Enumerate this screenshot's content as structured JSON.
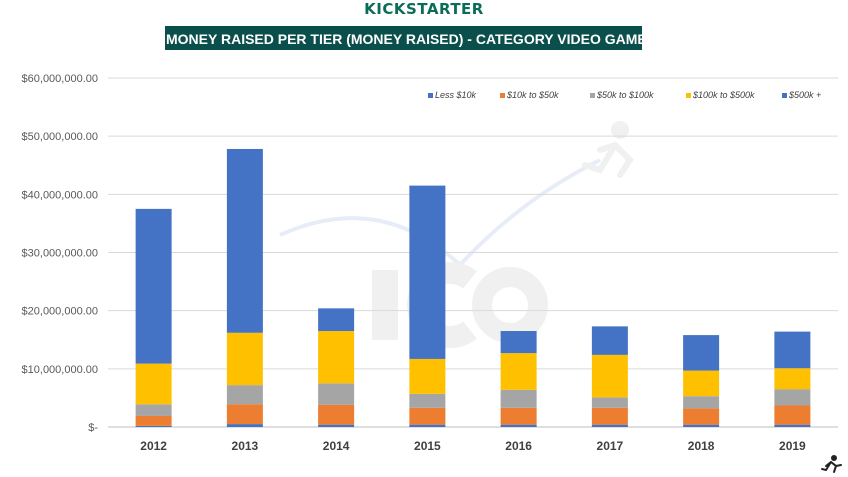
{
  "header": {
    "brand": "KICKSTARTER",
    "title": "MONEY RAISED PER TIER (MONEY RAISED) - CATEGORY VIDEO GAMES"
  },
  "colors": {
    "brand": "#0a6d57",
    "title_bg": "#0b4f4c",
    "series": [
      "#4472c4",
      "#ed7d31",
      "#a5a5a5",
      "#ffc000",
      "#4472c4"
    ]
  },
  "chart_data": {
    "type": "bar",
    "stacked": true,
    "title": "MONEY RAISED PER TIER (MONEY RAISED) - CATEGORY VIDEO GAMES",
    "xlabel": "",
    "ylabel": "",
    "ylim": [
      0,
      60000000
    ],
    "yticks": [
      0,
      10000000,
      20000000,
      30000000,
      40000000,
      50000000,
      60000000
    ],
    "ytick_labels": [
      "$-",
      "$10,000,000.00",
      "$20,000,000.00",
      "$30,000,000.00",
      "$40,000,000.00",
      "$50,000,000.00",
      "$60,000,000.00"
    ],
    "grid": true,
    "legend_position": "top-right",
    "categories": [
      "2012",
      "2013",
      "2014",
      "2015",
      "2016",
      "2017",
      "2018",
      "2019"
    ],
    "series": [
      {
        "name": "Less $10k",
        "values": [
          200000,
          500000,
          400000,
          400000,
          400000,
          400000,
          400000,
          400000
        ]
      },
      {
        "name": "$10k to $50k",
        "values": [
          1700000,
          3400000,
          3400000,
          2900000,
          2900000,
          2900000,
          2800000,
          3300000
        ]
      },
      {
        "name": "$50k to $100k",
        "values": [
          2000000,
          3300000,
          3700000,
          2400000,
          3100000,
          1800000,
          2100000,
          2800000
        ]
      },
      {
        "name": "$100k to $500k",
        "values": [
          7000000,
          9000000,
          9000000,
          6000000,
          6300000,
          7300000,
          4400000,
          3600000
        ]
      },
      {
        "name": "$500k +",
        "values": [
          26600000,
          31600000,
          3900000,
          29800000,
          3800000,
          4900000,
          6100000,
          6300000
        ]
      }
    ]
  }
}
